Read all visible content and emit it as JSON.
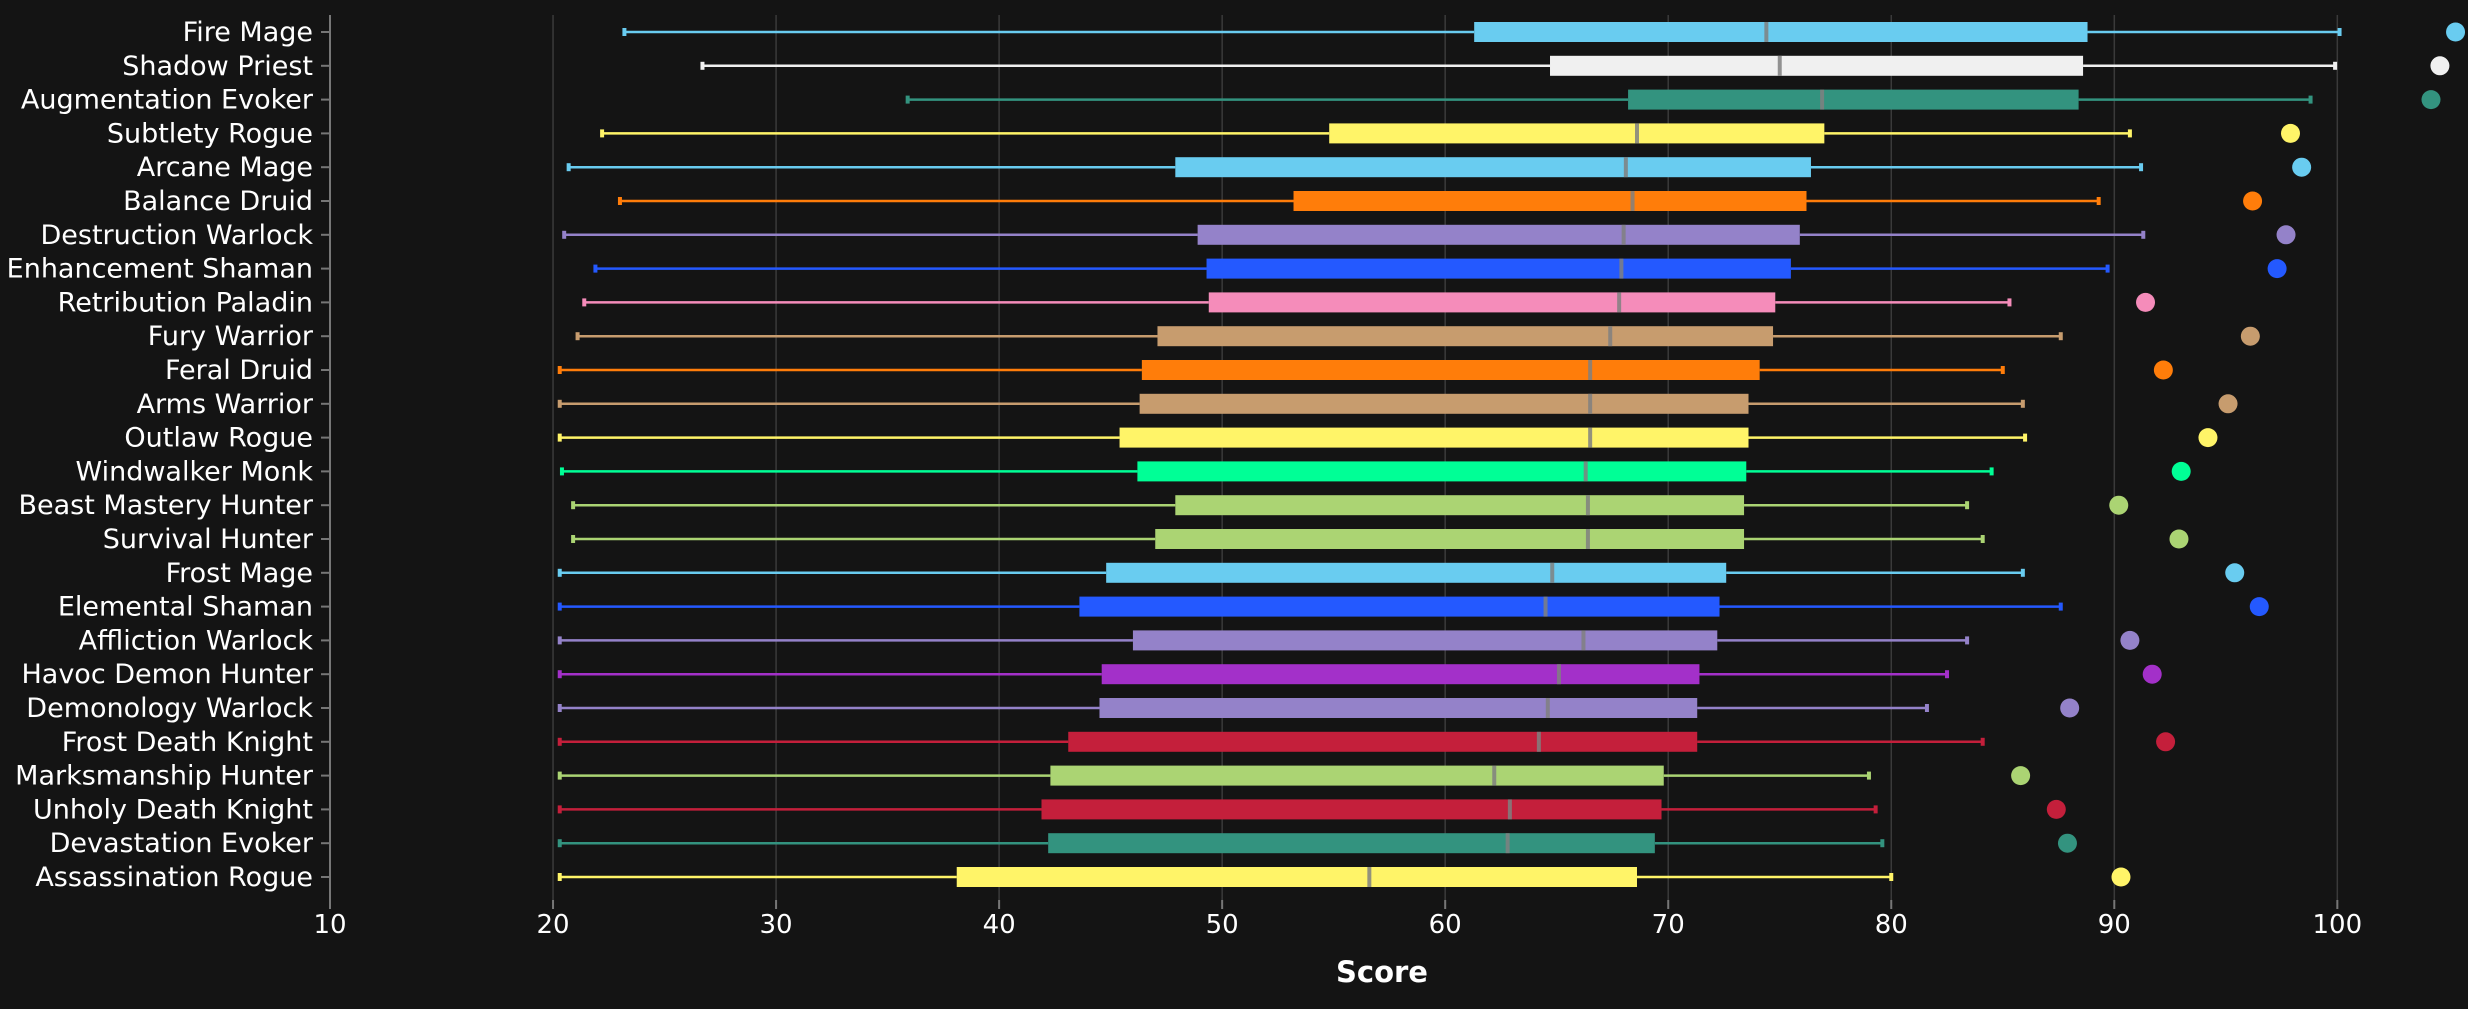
{
  "chart_data": {
    "type": "boxplot",
    "title": "",
    "xlabel": "Score",
    "ylabel": "",
    "xlim": [
      10,
      105.5
    ],
    "x_ticks": [
      10,
      20,
      30,
      40,
      50,
      60,
      70,
      80,
      90,
      100
    ],
    "grid": "vertical",
    "categories": [
      "Fire Mage",
      "Shadow Priest",
      "Augmentation Evoker",
      "Subtlety Rogue",
      "Arcane Mage",
      "Balance Druid",
      "Destruction Warlock",
      "Enhancement Shaman",
      "Retribution Paladin",
      "Fury Warrior",
      "Feral Druid",
      "Arms Warrior",
      "Outlaw Rogue",
      "Windwalker Monk",
      "Beast Mastery Hunter",
      "Survival Hunter",
      "Frost Mage",
      "Elemental Shaman",
      "Affliction Warlock",
      "Havoc Demon Hunter",
      "Demonology Warlock",
      "Frost Death Knight",
      "Marksmanship Hunter",
      "Unholy Death Knight",
      "Devastation Evoker",
      "Assassination Rogue"
    ],
    "series": [
      {
        "category": "Fire Mage",
        "color": "#69CCF0",
        "min": 23.2,
        "q1": 61.3,
        "median": 74.4,
        "q3": 88.8,
        "max": 100.1,
        "outlier": 105.3
      },
      {
        "category": "Shadow Priest",
        "color": "#F0F0F0",
        "min": 26.7,
        "q1": 64.7,
        "median": 75.0,
        "q3": 88.6,
        "max": 99.9,
        "outlier": 104.6
      },
      {
        "category": "Augmentation Evoker",
        "color": "#33937F",
        "min": 35.9,
        "q1": 68.2,
        "median": 76.9,
        "q3": 88.4,
        "max": 98.8,
        "outlier": 104.2
      },
      {
        "category": "Subtlety Rogue",
        "color": "#FFF468",
        "min": 22.2,
        "q1": 54.8,
        "median": 68.6,
        "q3": 77.0,
        "max": 90.7,
        "outlier": 97.9
      },
      {
        "category": "Arcane Mage",
        "color": "#69CCF0",
        "min": 20.7,
        "q1": 47.9,
        "median": 68.1,
        "q3": 76.4,
        "max": 91.2,
        "outlier": 98.4
      },
      {
        "category": "Balance Druid",
        "color": "#FF7D0A",
        "min": 23.0,
        "q1": 53.2,
        "median": 68.4,
        "q3": 76.2,
        "max": 89.3,
        "outlier": 96.2
      },
      {
        "category": "Destruction Warlock",
        "color": "#9482C9",
        "min": 20.5,
        "q1": 48.9,
        "median": 68.0,
        "q3": 75.9,
        "max": 91.3,
        "outlier": 97.7
      },
      {
        "category": "Enhancement Shaman",
        "color": "#2459FF",
        "min": 21.9,
        "q1": 49.3,
        "median": 67.9,
        "q3": 75.5,
        "max": 89.7,
        "outlier": 97.3
      },
      {
        "category": "Retribution Paladin",
        "color": "#F58CBA",
        "min": 21.4,
        "q1": 49.4,
        "median": 67.8,
        "q3": 74.8,
        "max": 85.3,
        "outlier": 91.4
      },
      {
        "category": "Fury Warrior",
        "color": "#C79C6E",
        "min": 21.1,
        "q1": 47.1,
        "median": 67.4,
        "q3": 74.7,
        "max": 87.6,
        "outlier": 96.1
      },
      {
        "category": "Feral Druid",
        "color": "#FF7D0A",
        "min": 20.3,
        "q1": 46.4,
        "median": 66.5,
        "q3": 74.1,
        "max": 85.0,
        "outlier": 92.2
      },
      {
        "category": "Arms Warrior",
        "color": "#C79C6E",
        "min": 20.3,
        "q1": 46.3,
        "median": 66.5,
        "q3": 73.6,
        "max": 85.9,
        "outlier": 95.1
      },
      {
        "category": "Outlaw Rogue",
        "color": "#FFF468",
        "min": 20.3,
        "q1": 45.4,
        "median": 66.5,
        "q3": 73.6,
        "max": 86.0,
        "outlier": 94.2
      },
      {
        "category": "Windwalker Monk",
        "color": "#00FF96",
        "min": 20.4,
        "q1": 46.2,
        "median": 66.3,
        "q3": 73.5,
        "max": 84.5,
        "outlier": 93.0
      },
      {
        "category": "Beast Mastery Hunter",
        "color": "#ABD473",
        "min": 20.9,
        "q1": 47.9,
        "median": 66.4,
        "q3": 73.4,
        "max": 83.4,
        "outlier": 90.2
      },
      {
        "category": "Survival Hunter",
        "color": "#ABD473",
        "min": 20.9,
        "q1": 47.0,
        "median": 66.4,
        "q3": 73.4,
        "max": 84.1,
        "outlier": 92.9
      },
      {
        "category": "Frost Mage",
        "color": "#69CCF0",
        "min": 20.3,
        "q1": 44.8,
        "median": 64.8,
        "q3": 72.6,
        "max": 85.9,
        "outlier": 95.4
      },
      {
        "category": "Elemental Shaman",
        "color": "#2459FF",
        "min": 20.3,
        "q1": 43.6,
        "median": 64.5,
        "q3": 72.3,
        "max": 87.6,
        "outlier": 96.5
      },
      {
        "category": "Affliction Warlock",
        "color": "#9482C9",
        "min": 20.3,
        "q1": 46.0,
        "median": 66.2,
        "q3": 72.2,
        "max": 83.4,
        "outlier": 90.7
      },
      {
        "category": "Havoc Demon Hunter",
        "color": "#A330C9",
        "min": 20.3,
        "q1": 44.6,
        "median": 65.1,
        "q3": 71.4,
        "max": 82.5,
        "outlier": 91.7
      },
      {
        "category": "Demonology Warlock",
        "color": "#9482C9",
        "min": 20.3,
        "q1": 44.5,
        "median": 64.6,
        "q3": 71.3,
        "max": 81.6,
        "outlier": 88.0
      },
      {
        "category": "Frost Death Knight",
        "color": "#C41F3B",
        "min": 20.3,
        "q1": 43.1,
        "median": 64.2,
        "q3": 71.3,
        "max": 84.1,
        "outlier": 92.3
      },
      {
        "category": "Marksmanship Hunter",
        "color": "#ABD473",
        "min": 20.3,
        "q1": 42.3,
        "median": 62.2,
        "q3": 69.8,
        "max": 79.0,
        "outlier": 85.8
      },
      {
        "category": "Unholy Death Knight",
        "color": "#C41F3B",
        "min": 20.3,
        "q1": 41.9,
        "median": 62.9,
        "q3": 69.7,
        "max": 79.3,
        "outlier": 87.4
      },
      {
        "category": "Devastation Evoker",
        "color": "#33937F",
        "min": 20.3,
        "q1": 42.2,
        "median": 62.8,
        "q3": 69.4,
        "max": 79.6,
        "outlier": 87.9
      },
      {
        "category": "Assassination Rogue",
        "color": "#FFF468",
        "min": 20.3,
        "q1": 38.1,
        "median": 56.6,
        "q3": 68.6,
        "max": 80.0,
        "outlier": 90.3
      }
    ]
  },
  "colors": {
    "background": "#141414",
    "grid": "#3a3a3a",
    "axis": "#777777",
    "text": "#ffffff"
  }
}
